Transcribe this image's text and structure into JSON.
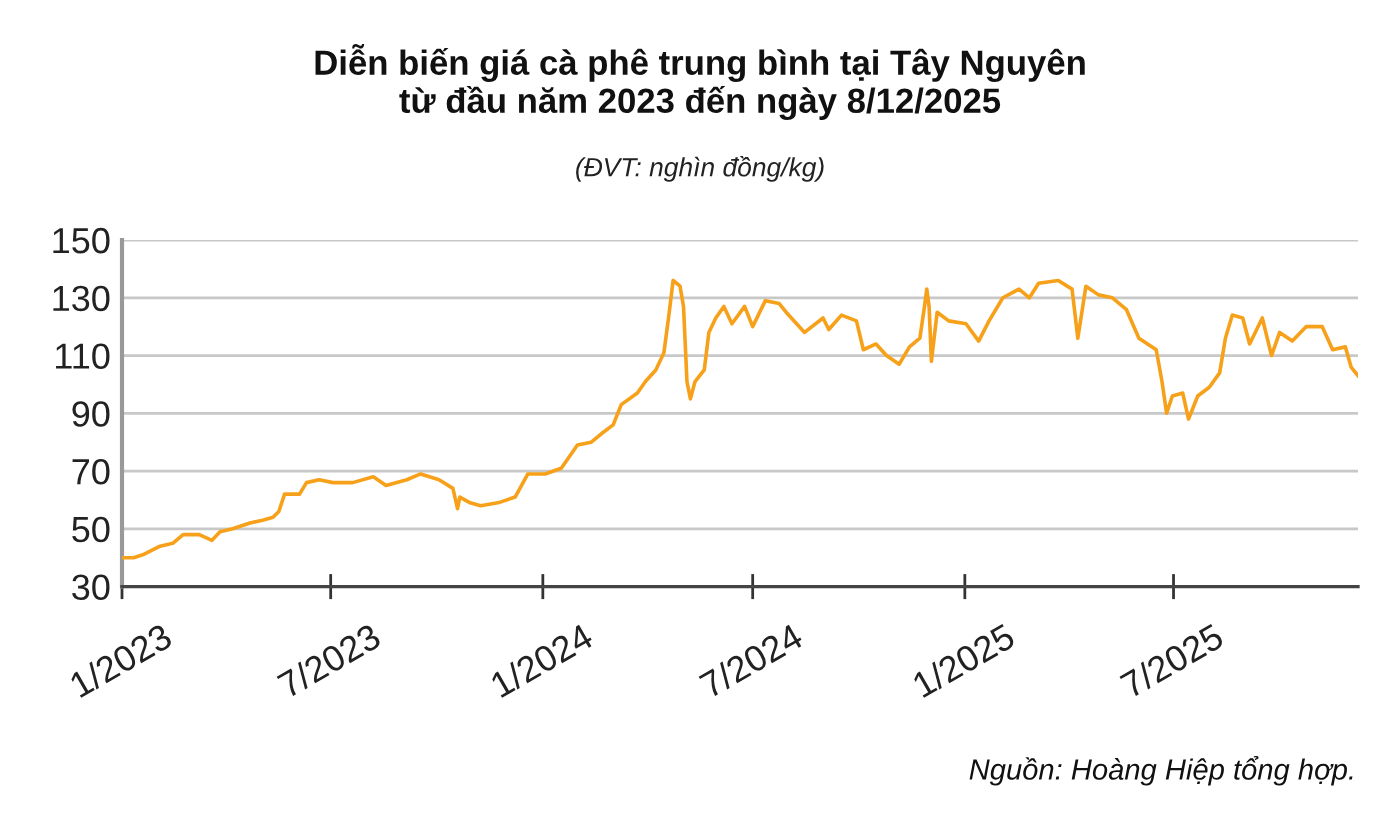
{
  "chart_data": {
    "type": "line",
    "title": "Diễn biến giá cà phê trung bình tại Tây Nguyên\ntừ đầu năm 2023 đến ngày 8/12/2025",
    "subtitle": "(ĐVT: nghìn đồng/kg)",
    "annotations": [
      "Nguồn: Hoàng Hiệp tổng hợp."
    ],
    "color": "#f7a11a",
    "x": [
      "2023-01-02",
      "2023-01-11",
      "2023-01-19",
      "2023-02-03",
      "2023-02-14",
      "2023-02-23",
      "2023-03-09",
      "2023-03-20",
      "2023-03-27",
      "2023-04-07",
      "2023-04-22",
      "2023-05-03",
      "2023-05-12",
      "2023-05-17",
      "2023-05-22",
      "2023-06-04",
      "2023-06-10",
      "2023-06-21",
      "2023-07-03",
      "2023-07-20",
      "2023-08-07",
      "2023-08-18",
      "2023-09-05",
      "2023-09-17",
      "2023-10-03",
      "2023-10-15",
      "2023-10-19",
      "2023-10-21",
      "2023-10-30",
      "2023-11-08",
      "2023-11-23",
      "2023-12-08",
      "2023-12-19",
      "2024-01-03",
      "2024-01-17",
      "2024-01-31",
      "2024-02-12",
      "2024-02-21",
      "2024-03-02",
      "2024-03-09",
      "2024-03-23",
      "2024-03-30",
      "2024-04-08",
      "2024-04-15",
      "2024-04-19",
      "2024-04-23",
      "2024-04-29",
      "2024-05-02",
      "2024-05-05",
      "2024-05-08",
      "2024-05-12",
      "2024-05-20",
      "2024-05-24",
      "2024-05-30",
      "2024-06-06",
      "2024-06-13",
      "2024-06-24",
      "2024-07-01",
      "2024-07-12",
      "2024-07-24",
      "2024-07-30",
      "2024-08-15",
      "2024-08-31",
      "2024-09-05",
      "2024-09-16",
      "2024-09-29",
      "2024-10-05",
      "2024-10-16",
      "2024-10-25",
      "2024-11-05",
      "2024-11-14",
      "2024-11-23",
      "2024-11-27",
      "2024-11-29",
      "2024-12-01",
      "2024-12-03",
      "2024-12-08",
      "2024-12-18",
      "2025-01-02",
      "2025-01-13",
      "2025-01-22",
      "2025-02-03",
      "2025-02-17",
      "2025-02-26",
      "2025-03-06",
      "2025-03-23",
      "2025-04-04",
      "2025-04-09",
      "2025-04-16",
      "2025-04-27",
      "2025-05-09",
      "2025-05-21",
      "2025-06-01",
      "2025-06-16",
      "2025-06-21",
      "2025-06-25",
      "2025-06-30",
      "2025-07-09",
      "2025-07-14",
      "2025-07-22",
      "2025-08-01",
      "2025-08-10",
      "2025-08-15",
      "2025-08-21",
      "2025-08-30",
      "2025-09-05",
      "2025-09-16",
      "2025-09-24",
      "2025-10-01",
      "2025-10-12",
      "2025-10-24",
      "2025-11-07",
      "2025-11-16",
      "2025-11-27",
      "2025-12-02",
      "2025-12-08"
    ],
    "values": [
      40,
      40,
      41,
      44,
      45,
      48,
      48,
      46,
      49,
      50,
      52,
      53,
      54,
      56,
      62,
      62,
      66,
      67,
      66,
      66,
      68,
      65,
      67,
      69,
      67,
      64,
      57,
      61,
      59,
      58,
      59,
      61,
      69,
      69,
      71,
      79,
      80,
      83,
      86,
      93,
      97,
      101,
      105,
      111,
      123,
      136,
      134,
      127,
      101,
      95,
      101,
      105,
      118,
      123,
      127,
      121,
      127,
      120,
      129,
      128,
      125,
      118,
      123,
      119,
      124,
      122,
      112,
      114,
      110,
      107,
      113,
      116,
      127,
      133,
      127,
      108,
      125,
      122,
      121,
      115,
      122,
      130,
      133,
      130,
      135,
      136,
      133,
      116,
      134,
      131,
      130,
      126,
      116,
      112,
      101,
      90,
      96,
      97,
      88,
      96,
      99,
      104,
      116,
      124,
      123,
      114,
      123,
      110,
      118,
      115,
      120,
      120,
      112,
      113,
      106,
      103
    ],
    "xlim": [
      "2023-01-01",
      "2025-12-08"
    ],
    "xticks": [
      {
        "value": "2023-01-01",
        "label": "1/2023"
      },
      {
        "value": "2023-07-01",
        "label": "7/2023"
      },
      {
        "value": "2024-01-01",
        "label": "1/2024"
      },
      {
        "value": "2024-07-01",
        "label": "7/2024"
      },
      {
        "value": "2025-01-01",
        "label": "1/2025"
      },
      {
        "value": "2025-07-01",
        "label": "7/2025"
      }
    ],
    "ylim": [
      30,
      150
    ],
    "yticks": [
      30,
      50,
      70,
      90,
      110,
      130,
      150
    ],
    "grid": "y",
    "line_style": "solid"
  }
}
